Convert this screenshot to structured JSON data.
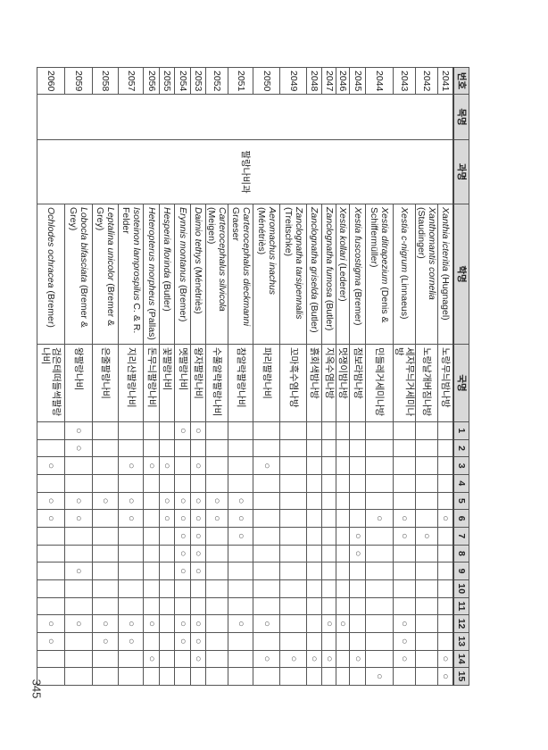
{
  "table": {
    "headers": {
      "no": "번호",
      "order": "목명",
      "family": "과명",
      "sci": "학명",
      "kor": "국명",
      "sites": [
        "1",
        "2",
        "3",
        "4",
        "5",
        "6",
        "7",
        "8",
        "9",
        "10",
        "11",
        "12",
        "13",
        "14",
        "15"
      ]
    },
    "order_value": "",
    "family_value": "팔랑나비과",
    "mark_symbol": "○",
    "rows": [
      {
        "no": "2041",
        "genus_species": "Xanthia icteritia",
        "author": "(Hugnagel)",
        "kor": "노랑무늬밤나방",
        "marks": [
          6,
          14,
          15
        ]
      },
      {
        "no": "2042",
        "genus_species": "Xanthomantis cornelia",
        "author": "(Staudinger)",
        "kor": "노랑날개버짐나방",
        "marks": [
          7
        ]
      },
      {
        "no": "2043",
        "genus_species": "Xestia c-nigrum",
        "author": "(Linnaeus)",
        "kor": "세자무늬거세미나방",
        "marks": [
          6,
          7,
          12,
          13,
          14
        ]
      },
      {
        "no": "2044",
        "genus_species": "Xestia ditrapezium",
        "author": "(Denis & Schiffermüller)",
        "kor": "민들레거세미나방",
        "marks": [
          6,
          15
        ]
      },
      {
        "no": "2045",
        "genus_species": "Xestia fuscostigma",
        "author": "(Bremer)",
        "kor": "점보라밤나방",
        "marks": [
          7,
          8,
          14
        ]
      },
      {
        "no": "2046",
        "genus_species": "Xestia kollari",
        "author": "(Lederer)",
        "kor": "멋쟁이밤나방",
        "marks": [
          12
        ]
      },
      {
        "no": "2047",
        "genus_species": "Zanclognatha fumosa",
        "author": "(Butler)",
        "kor": "지옥수염나방",
        "marks": [
          12,
          14
        ]
      },
      {
        "no": "2048",
        "genus_species": "Zanclognatha griselda",
        "author": "(Butler)",
        "kor": "흙회색밤나방",
        "marks": [
          14
        ]
      },
      {
        "no": "2049",
        "genus_species": "Zanclognatha tarsipennalis",
        "author": "(Treitschke)",
        "kor": "꼬마흑수염나방",
        "marks": [
          14
        ]
      },
      {
        "no": "2050",
        "genus_species": "Aeromachus inachus",
        "author": "(Ménétriès)",
        "kor": "파리팔랑나비",
        "marks": [
          3,
          12,
          14
        ]
      },
      {
        "no": "2051",
        "genus_species": "Carterocephalus dieckmanni",
        "author": "Graeser",
        "kor": "참알락팔랑나비",
        "marks": [
          5,
          6,
          7,
          12
        ]
      },
      {
        "no": "2052",
        "genus_species": "Carterocephalus silvicola",
        "author": "(Meigen)",
        "kor": "수풀알락팔랑나비",
        "marks": [
          5,
          6
        ]
      },
      {
        "no": "2053",
        "genus_species": "Daimio tethys",
        "author": "(Ménétriès)",
        "kor": "왕자팔랑나비",
        "marks": [
          1,
          3,
          5,
          6,
          7,
          8,
          9,
          12,
          13,
          14
        ]
      },
      {
        "no": "2054",
        "genus_species": "Erynnis montanus",
        "author": "(Bremer)",
        "kor": "멧팔랑나비",
        "marks": [
          1,
          5,
          6,
          7,
          8,
          9,
          12,
          13
        ]
      },
      {
        "no": "2055",
        "genus_species": "Hesperia florinda",
        "author": "(Butler)",
        "kor": "꽃팔랑나비",
        "marks": [
          3,
          5,
          6
        ]
      },
      {
        "no": "2056",
        "genus_species": "Heteropterus morpheus",
        "author": "(Pallas)",
        "kor": "돈무늬팔랑나비",
        "marks": [
          3,
          12,
          14
        ]
      },
      {
        "no": "2057",
        "genus_species": "Isoteinon lamprospilus",
        "author": "C. & R. Felder",
        "kor": "지리산팔랑나비",
        "marks": [
          3,
          5,
          6,
          12,
          13
        ]
      },
      {
        "no": "2058",
        "genus_species": "Leptalina unicolor",
        "author": "(Bremer & Grey)",
        "kor": "은줄팔랑나비",
        "marks": [
          5,
          12,
          13
        ]
      },
      {
        "no": "2059",
        "genus_species": "Lobocla bifasciata",
        "author": "(Bremer & Grey)",
        "kor": "왕팔랑나비",
        "marks": [
          1,
          2,
          5,
          6,
          9,
          12
        ]
      },
      {
        "no": "2060",
        "genus_species": "Ochlodes ochracea",
        "author": "(Bremer)",
        "kor": "검은테떠들썩팔랑나비",
        "marks": [
          3,
          5,
          6,
          12,
          13
        ]
      }
    ]
  },
  "page_number": "345"
}
